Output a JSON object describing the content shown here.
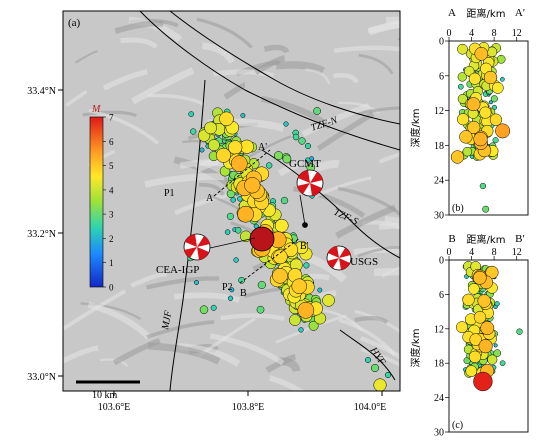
{
  "panel_a": {
    "label": "(a)",
    "lat_ticks": [
      "33.4°N",
      "33.2°N",
      "33.0°N"
    ],
    "lon_ticks": [
      "103.6°E",
      "103.8°E",
      "104.0°E"
    ],
    "colorbar": {
      "title": "M",
      "ticks": [
        "7",
        "6",
        "5",
        "4",
        "3",
        "2",
        "1",
        "0"
      ],
      "min": 0,
      "max": 7
    },
    "fault_labels": {
      "tzf_n": "TZF-N",
      "tzf_s": "TZF-S",
      "mjf": "MJF",
      "hyf": "HYF"
    },
    "mechanism_labels": {
      "gcmt": "GCMT",
      "cea": "CEA-IGP",
      "usgs": "USGS"
    },
    "profile_labels": {
      "a": "A",
      "a_prime": "A'",
      "b": "B",
      "b_prime": "B'",
      "p1": "P1",
      "p2": "P2"
    },
    "scale_bar": "10 km"
  },
  "panel_b": {
    "label": "(b)",
    "start": "A",
    "end": "A′",
    "xlabel": "距离/km",
    "ylabel": "深度/km",
    "xticks": [
      "0",
      "4",
      "8",
      "12"
    ],
    "yticks": [
      "0",
      "6",
      "12",
      "18",
      "24",
      "30"
    ]
  },
  "panel_c": {
    "label": "(c)",
    "start": "B",
    "end": "B′",
    "xlabel": "距离/km",
    "ylabel": "深度/km",
    "xticks": [
      "0",
      "4",
      "8",
      "12"
    ],
    "yticks": [
      "0",
      "6",
      "12",
      "18",
      "24",
      "30"
    ]
  }
}
